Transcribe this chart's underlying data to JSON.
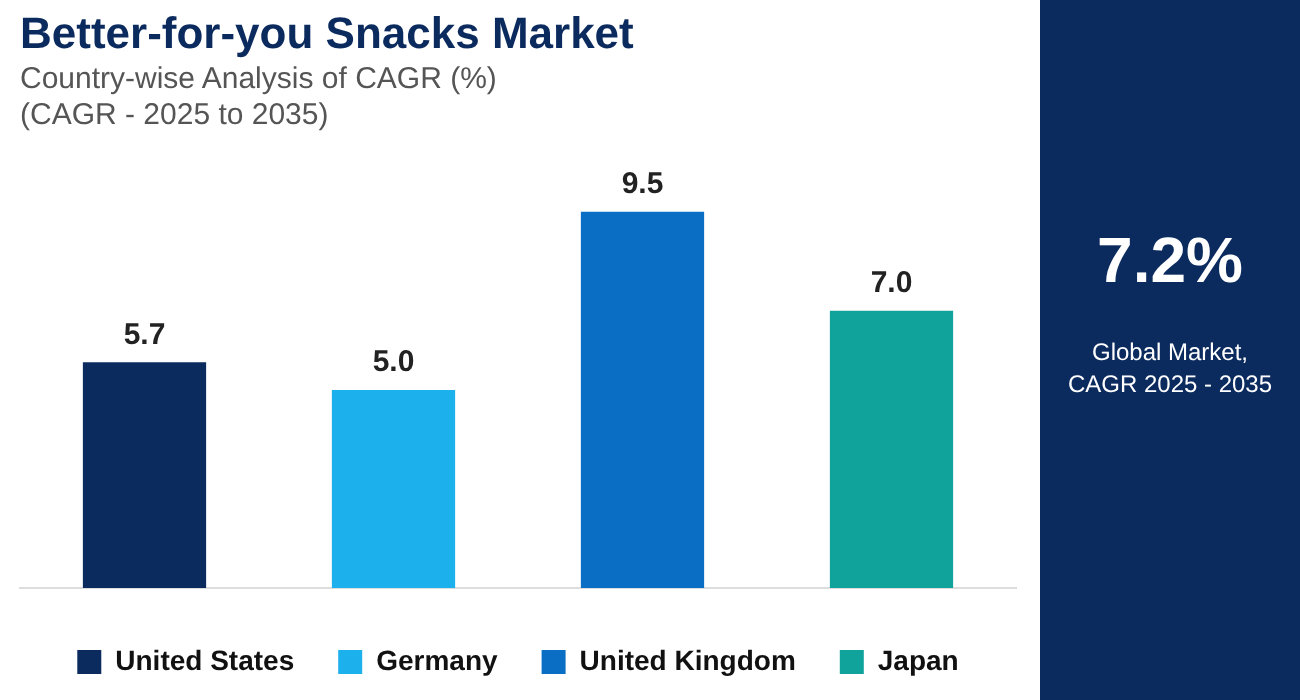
{
  "chart_data": [
    {
      "type": "bar",
      "title": "Better-for-you Snacks Market",
      "subtitle": "Country-wise Analysis of CAGR (%)",
      "annotations": [
        "(CAGR - 2025 to 2035)"
      ],
      "categories": [
        null,
        null,
        null,
        null
      ],
      "series": [
        {
          "name": "United States",
          "color": "#0b2a5e",
          "values": [
            5.7,
            null,
            null,
            null
          ],
          "value_labels": [
            "5.7",
            null,
            null,
            null
          ]
        },
        {
          "name": "Germany",
          "color": "#1cb0ec",
          "values": [
            null,
            5.0,
            null,
            null
          ],
          "value_labels": [
            null,
            "5.0",
            null,
            null
          ]
        },
        {
          "name": "United Kingdom",
          "color": "#0a6fc4",
          "values": [
            null,
            null,
            9.5,
            null
          ],
          "value_labels": [
            null,
            null,
            "9.5",
            null
          ]
        },
        {
          "name": "Japan",
          "color": "#10a39c",
          "values": [
            null,
            null,
            null,
            7.0
          ],
          "value_labels": [
            null,
            null,
            null,
            "7.0"
          ]
        }
      ],
      "stacked": true,
      "legend": "bottom",
      "tick_labels": false
    },
    {
      "type": "other",
      "title": "7.2%",
      "annotations": [
        "Global Market, CAGR 2025 - 2035"
      ]
    }
  ]
}
